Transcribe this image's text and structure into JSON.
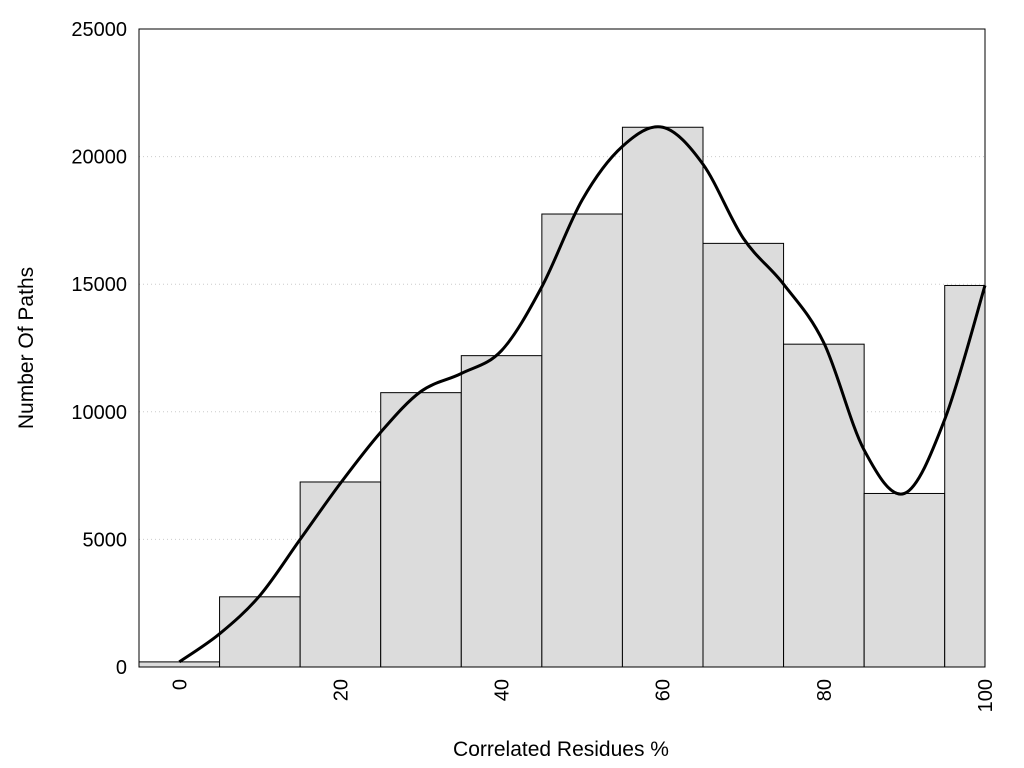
{
  "chart_data": {
    "type": "bar",
    "title": "",
    "xlabel": "Correlated Residues %",
    "ylabel": "Number Of Paths",
    "xlim": [
      -5,
      100
    ],
    "ylim": [
      0,
      25000
    ],
    "grid": true,
    "legend": "none",
    "colors": {
      "bar_fill": "#dcdcdc",
      "bar_stroke": "#000000",
      "curve": "#000000",
      "grid": "#cccccc"
    },
    "x_ticks": [
      "0",
      "20",
      "40",
      "60",
      "80",
      "100"
    ],
    "y_ticks": [
      "0",
      "5000",
      "10000",
      "15000",
      "20000",
      "25000"
    ],
    "bins": [
      {
        "x0": -5,
        "x1": 5,
        "value": 200
      },
      {
        "x0": 5,
        "x1": 15,
        "value": 2750
      },
      {
        "x0": 15,
        "x1": 25,
        "value": 7250
      },
      {
        "x0": 25,
        "x1": 35,
        "value": 10750
      },
      {
        "x0": 35,
        "x1": 45,
        "value": 12200
      },
      {
        "x0": 45,
        "x1": 55,
        "value": 17750
      },
      {
        "x0": 55,
        "x1": 65,
        "value": 21150
      },
      {
        "x0": 65,
        "x1": 75,
        "value": 16600
      },
      {
        "x0": 75,
        "x1": 85,
        "value": 12650
      },
      {
        "x0": 85,
        "x1": 95,
        "value": 6800
      },
      {
        "x0": 95,
        "x1": 100,
        "value": 14950
      }
    ],
    "curve": {
      "x": [
        0,
        5,
        10,
        15,
        20,
        25,
        30,
        35,
        40,
        45,
        50,
        55,
        60,
        65,
        70,
        75,
        80,
        85,
        90,
        95,
        100
      ],
      "y": [
        200,
        1300,
        2800,
        5000,
        7200,
        9200,
        10800,
        11500,
        12400,
        14900,
        18300,
        20400,
        21150,
        19700,
        16800,
        15000,
        12700,
        8500,
        6800,
        9700,
        14950
      ]
    }
  }
}
